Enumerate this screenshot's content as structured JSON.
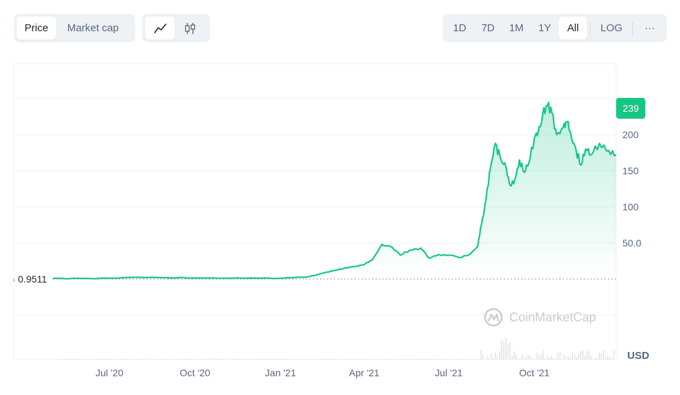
{
  "toolbar": {
    "type_tabs": [
      {
        "label": "Price",
        "active": true
      },
      {
        "label": "Market cap",
        "active": false
      }
    ],
    "view_icons": [
      "line-chart-icon",
      "candlestick-icon"
    ],
    "ranges": [
      "1D",
      "7D",
      "1M",
      "1Y",
      "All"
    ],
    "active_range": "All",
    "log_label": "LOG",
    "more_label": "···"
  },
  "watermark": "CoinMarketCap",
  "price_badge": "239",
  "start_price_label": "0.9511",
  "currency_label": "USD",
  "colors": {
    "line": "#16c784",
    "badge": "#16c784",
    "grid": "#eff2f5"
  },
  "chart_data": {
    "type": "area",
    "x_tick_labels": [
      "Jul '20",
      "Oct '20",
      "Jan '21",
      "Apr '21",
      "Jul '21",
      "Oct '21"
    ],
    "y_tick_labels": [
      "50.0",
      "100",
      "150",
      "200"
    ],
    "ylim": [
      0,
      250
    ],
    "grid": true,
    "x": [
      "2020-05",
      "2020-06",
      "2020-07",
      "2020-08",
      "2020-09",
      "2020-10",
      "2020-11",
      "2020-12",
      "2021-01",
      "2021-01-15",
      "2021-02",
      "2021-02-15",
      "2021-03",
      "2021-03-15",
      "2021-04",
      "2021-04-10",
      "2021-04-20",
      "2021-05",
      "2021-05-10",
      "2021-05-20",
      "2021-06",
      "2021-06-10",
      "2021-06-20",
      "2021-07",
      "2021-07-15",
      "2021-07-25",
      "2021-08",
      "2021-08-05",
      "2021-08-10",
      "2021-08-15",
      "2021-08-20",
      "2021-08-25",
      "2021-09",
      "2021-09-05",
      "2021-09-10",
      "2021-09-15",
      "2021-09-20",
      "2021-09-25",
      "2021-10",
      "2021-10-05",
      "2021-10-10",
      "2021-10-15",
      "2021-10-20",
      "2021-10-25",
      "2021-11",
      "2021-11-05",
      "2021-11-10",
      "2021-11-15",
      "2021-11-20",
      "2021-11-25",
      "2021-12",
      "2021-12-10",
      "2021-12-20",
      "2021-12-28"
    ],
    "series": [
      {
        "values": [
          0.95,
          1.0,
          1.1,
          2.5,
          1.9,
          1.5,
          1.2,
          1.4,
          1.2,
          2.0,
          3.5,
          8,
          12,
          16,
          20,
          27,
          48,
          44,
          33,
          40,
          43,
          29,
          34,
          33,
          30,
          36,
          45,
          75,
          110,
          155,
          188,
          170,
          152,
          130,
          138,
          165,
          148,
          160,
          195,
          203,
          228,
          240,
          230,
          200,
          210,
          218,
          195,
          178,
          158,
          180,
          172,
          188,
          178,
          172
        ]
      }
    ]
  }
}
